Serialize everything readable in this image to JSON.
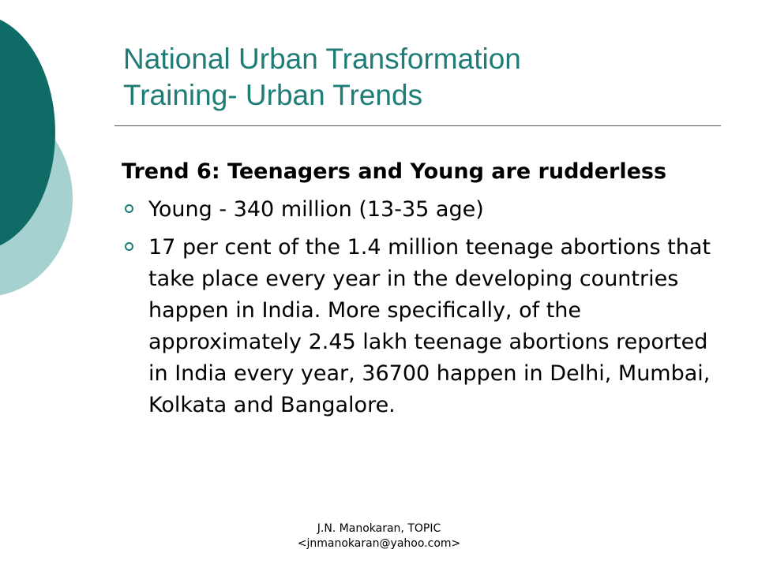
{
  "slide": {
    "title_lines": [
      "National Urban Transformation",
      "Training- Urban Trends"
    ],
    "trend_heading": "Trend 6:  Teenagers and Young are rudderless",
    "bullets": [
      "Young - 340 million (13-35 age)",
      "17 per cent of the 1.4 million teenage abortions that take place every year in the developing countries happen in India. More specifically, of the approximately 2.45 lakh teenage abortions reported in India every year, 36700 happen in Delhi, Mumbai, Kolkata and Bangalore."
    ],
    "footer": {
      "line1": "J.N. Manokaran, TOPIC",
      "line2": "<jnmanokaran@yahoo.com>"
    }
  },
  "colors": {
    "title": "#1f7c76",
    "accent_dark": "#0e6b66",
    "accent_light": "#a5d2d0",
    "bullet": "#1f7c76"
  },
  "icons": {
    "bullet": "hollow-circle-bullet-icon"
  }
}
